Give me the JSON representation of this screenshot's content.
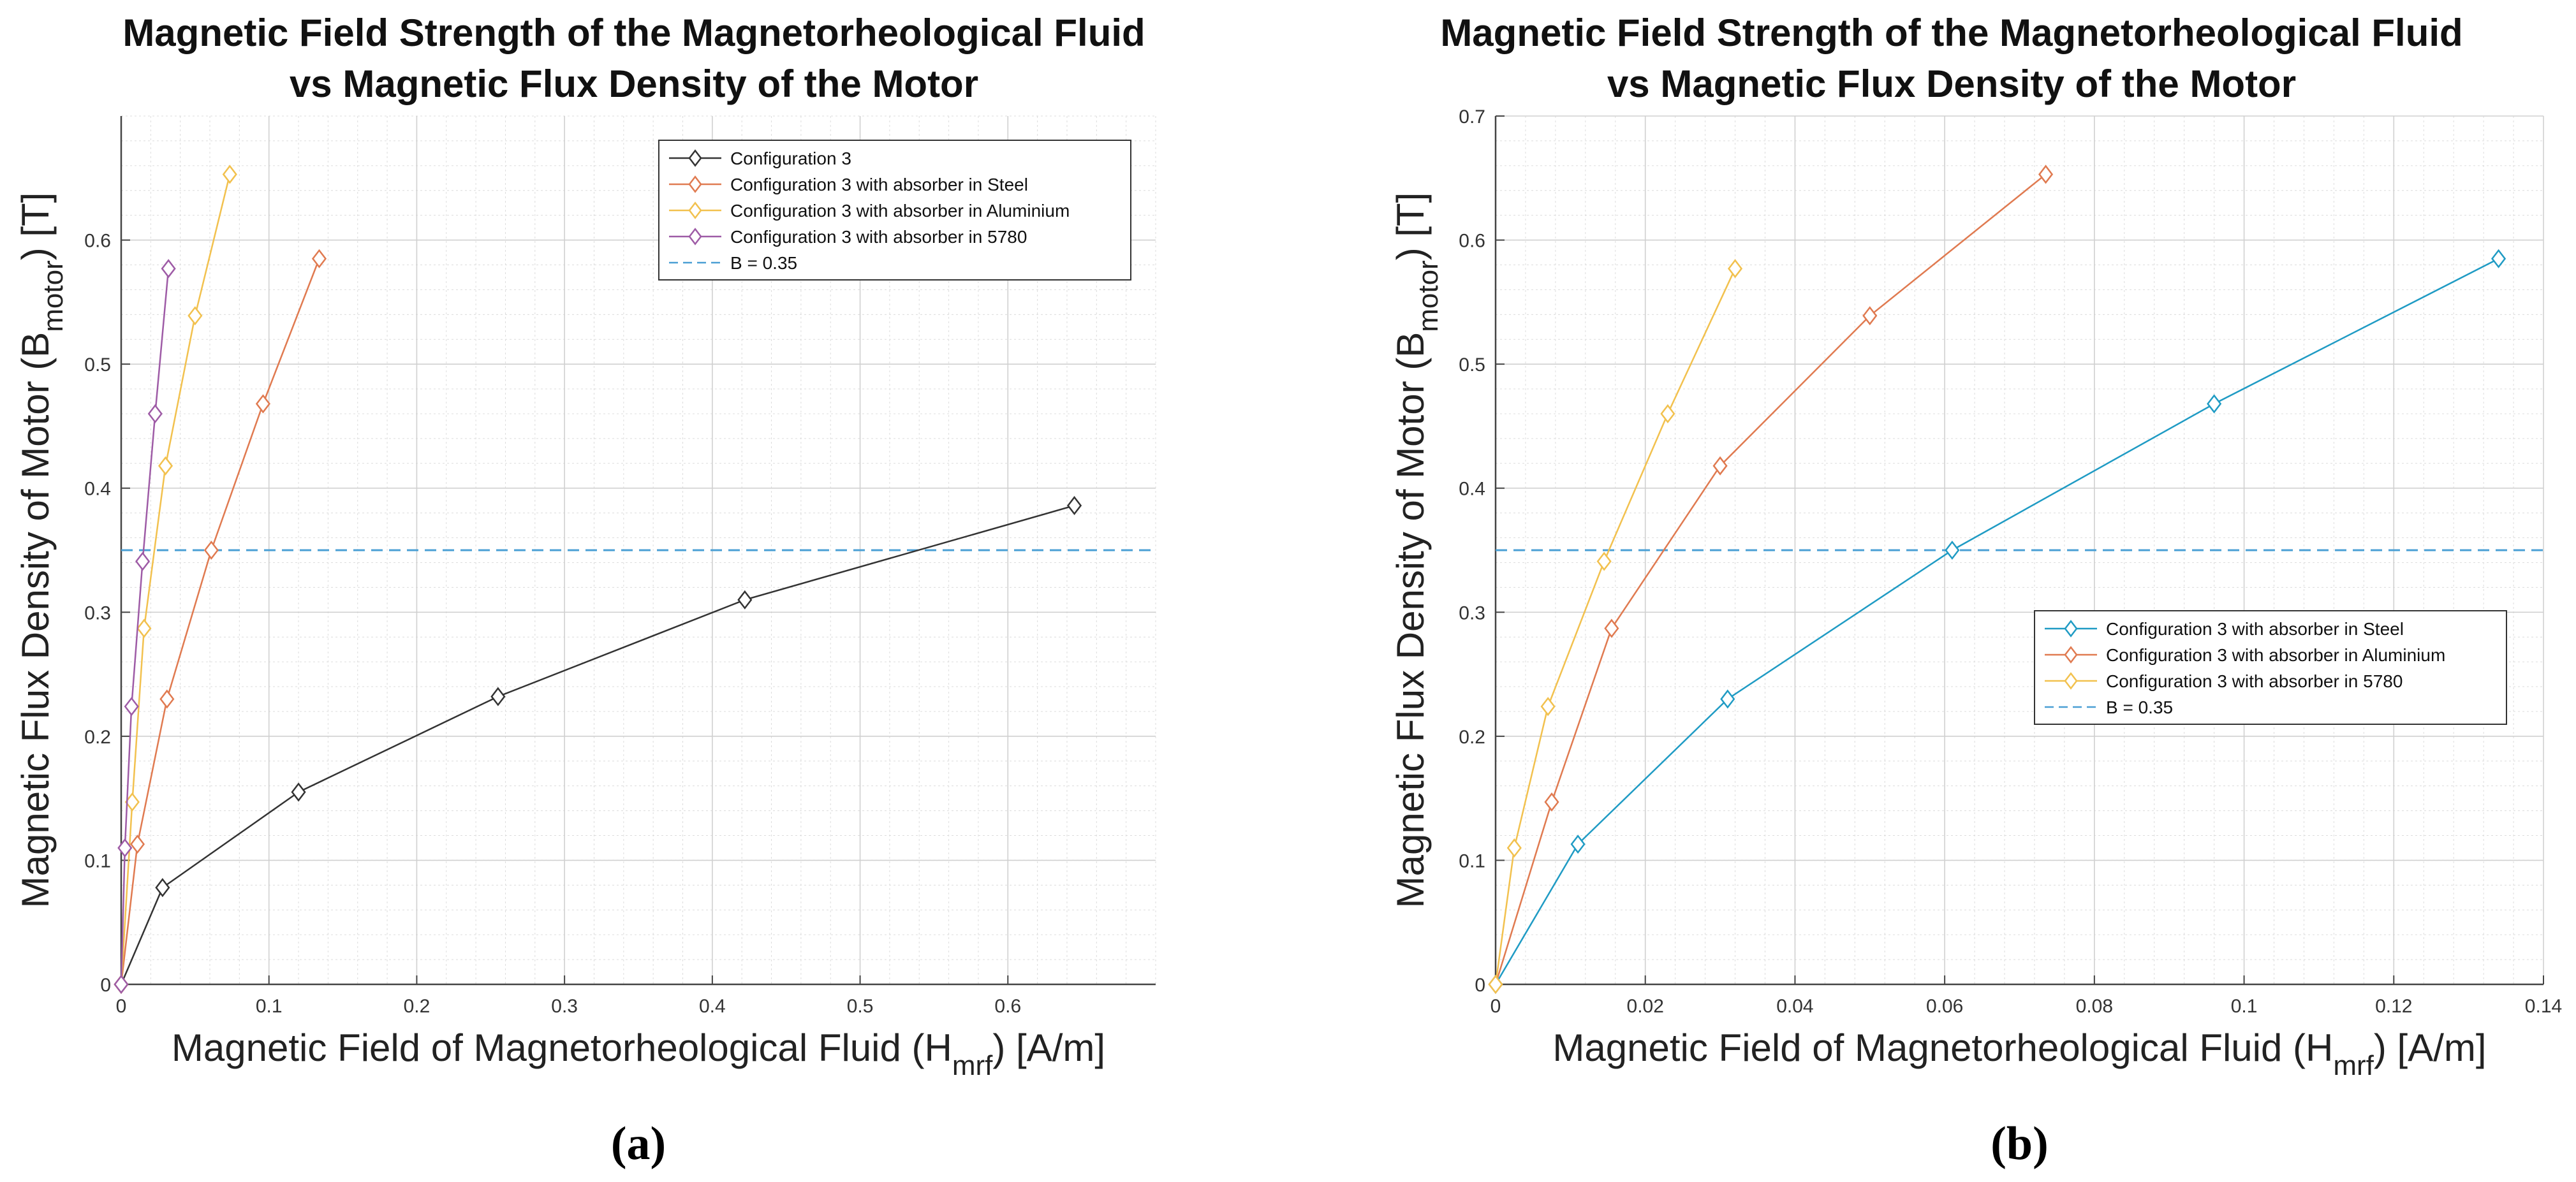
{
  "chart_data": [
    {
      "type": "line",
      "panel_label": "(a)",
      "title_lines": [
        "Magnetic Field Strength of the Magnetorheological Fluid",
        "vs Magnetic Flux Density of the Motor"
      ],
      "xlabel": {
        "main": "Magnetic Field of Magnetorheological Fluid (H",
        "sub": "mrf",
        "tail": ") [A/m]"
      },
      "ylabel": {
        "main": "Magnetic Flux Density of Motor (B",
        "sub": "motor",
        "tail": ") [T]"
      },
      "xlim": [
        0,
        0.7
      ],
      "ylim": [
        0,
        0.7
      ],
      "xticks": [
        0,
        0.1,
        0.2,
        0.3,
        0.4,
        0.5,
        0.6
      ],
      "xtick_labels": [
        "0",
        "0.1",
        "0.2",
        "0.3",
        "0.4",
        "0.5",
        "0.6"
      ],
      "yticks": [
        0,
        0.1,
        0.2,
        0.3,
        0.4,
        0.5,
        0.6
      ],
      "ytick_labels": [
        "0",
        "0.1",
        "0.2",
        "0.3",
        "0.4",
        "0.5",
        "0.6"
      ],
      "grid": true,
      "legend_position": "top-right",
      "series": [
        {
          "name": "Configuration 3",
          "color": "#333333",
          "marker": "diamond",
          "x": [
            0,
            0.028,
            0.12,
            0.255,
            0.422,
            0.645
          ],
          "y": [
            0,
            0.078,
            0.155,
            0.232,
            0.31,
            0.386
          ]
        },
        {
          "name": "Configuration 3 with absorber in Steel",
          "color": "#e07a50",
          "marker": "diamond",
          "x": [
            0,
            0.011,
            0.031,
            0.061,
            0.096,
            0.134
          ],
          "y": [
            0,
            0.113,
            0.23,
            0.35,
            0.468,
            0.585
          ]
        },
        {
          "name": "Configuration 3 with absorber in Aluminium",
          "color": "#f2c14e",
          "marker": "diamond",
          "x": [
            0,
            0.0075,
            0.0155,
            0.03,
            0.05,
            0.0735
          ],
          "y": [
            0,
            0.147,
            0.287,
            0.418,
            0.539,
            0.653
          ]
        },
        {
          "name": "Configuration 3 with absorber in 5780",
          "color": "#9e5ba6",
          "marker": "diamond",
          "x": [
            0,
            0.0025,
            0.007,
            0.0145,
            0.023,
            0.032
          ],
          "y": [
            0,
            0.11,
            0.224,
            0.341,
            0.46,
            0.577
          ]
        }
      ],
      "reference_line": {
        "name": "B = 0.35",
        "y": 0.35,
        "color": "#4a9fd4",
        "style": "dashed"
      }
    },
    {
      "type": "line",
      "panel_label": "(b)",
      "title_lines": [
        "Magnetic Field Strength of the Magnetorheological Fluid",
        "vs Magnetic Flux Density of the Motor"
      ],
      "xlabel": {
        "main": "Magnetic Field of Magnetorheological Fluid (H",
        "sub": "mrf",
        "tail": ") [A/m]"
      },
      "ylabel": {
        "main": "Magnetic Flux Density of Motor (B",
        "sub": "motor",
        "tail": ") [T]"
      },
      "xlim": [
        0,
        0.14
      ],
      "ylim": [
        0,
        0.7
      ],
      "xticks": [
        0,
        0.02,
        0.04,
        0.06,
        0.08,
        0.1,
        0.12,
        0.14
      ],
      "xtick_labels": [
        "0",
        "0.02",
        "0.04",
        "0.06",
        "0.08",
        "0.1",
        "0.12",
        "0.14"
      ],
      "yticks": [
        0,
        0.1,
        0.2,
        0.3,
        0.4,
        0.5,
        0.6,
        0.7
      ],
      "ytick_labels": [
        "0",
        "0.1",
        "0.2",
        "0.3",
        "0.4",
        "0.5",
        "0.6",
        "0.7"
      ],
      "grid": true,
      "legend_position": "center-right",
      "series": [
        {
          "name": "Configuration 3 with absorber in Steel",
          "color": "#1f9bc4",
          "marker": "diamond",
          "x": [
            0,
            0.011,
            0.031,
            0.061,
            0.096,
            0.134
          ],
          "y": [
            0,
            0.113,
            0.23,
            0.35,
            0.468,
            0.585
          ]
        },
        {
          "name": "Configuration 3 with absorber in Aluminium",
          "color": "#e07a50",
          "marker": "diamond",
          "x": [
            0,
            0.0075,
            0.0155,
            0.03,
            0.05,
            0.0735
          ],
          "y": [
            0,
            0.147,
            0.287,
            0.418,
            0.539,
            0.653
          ]
        },
        {
          "name": "Configuration 3 with absorber in 5780",
          "color": "#f2c14e",
          "marker": "diamond",
          "x": [
            0,
            0.0025,
            0.007,
            0.0145,
            0.023,
            0.032
          ],
          "y": [
            0,
            0.11,
            0.224,
            0.341,
            0.46,
            0.577
          ]
        }
      ],
      "reference_line": {
        "name": "B = 0.35",
        "y": 0.35,
        "color": "#4a9fd4",
        "style": "dashed"
      }
    }
  ]
}
